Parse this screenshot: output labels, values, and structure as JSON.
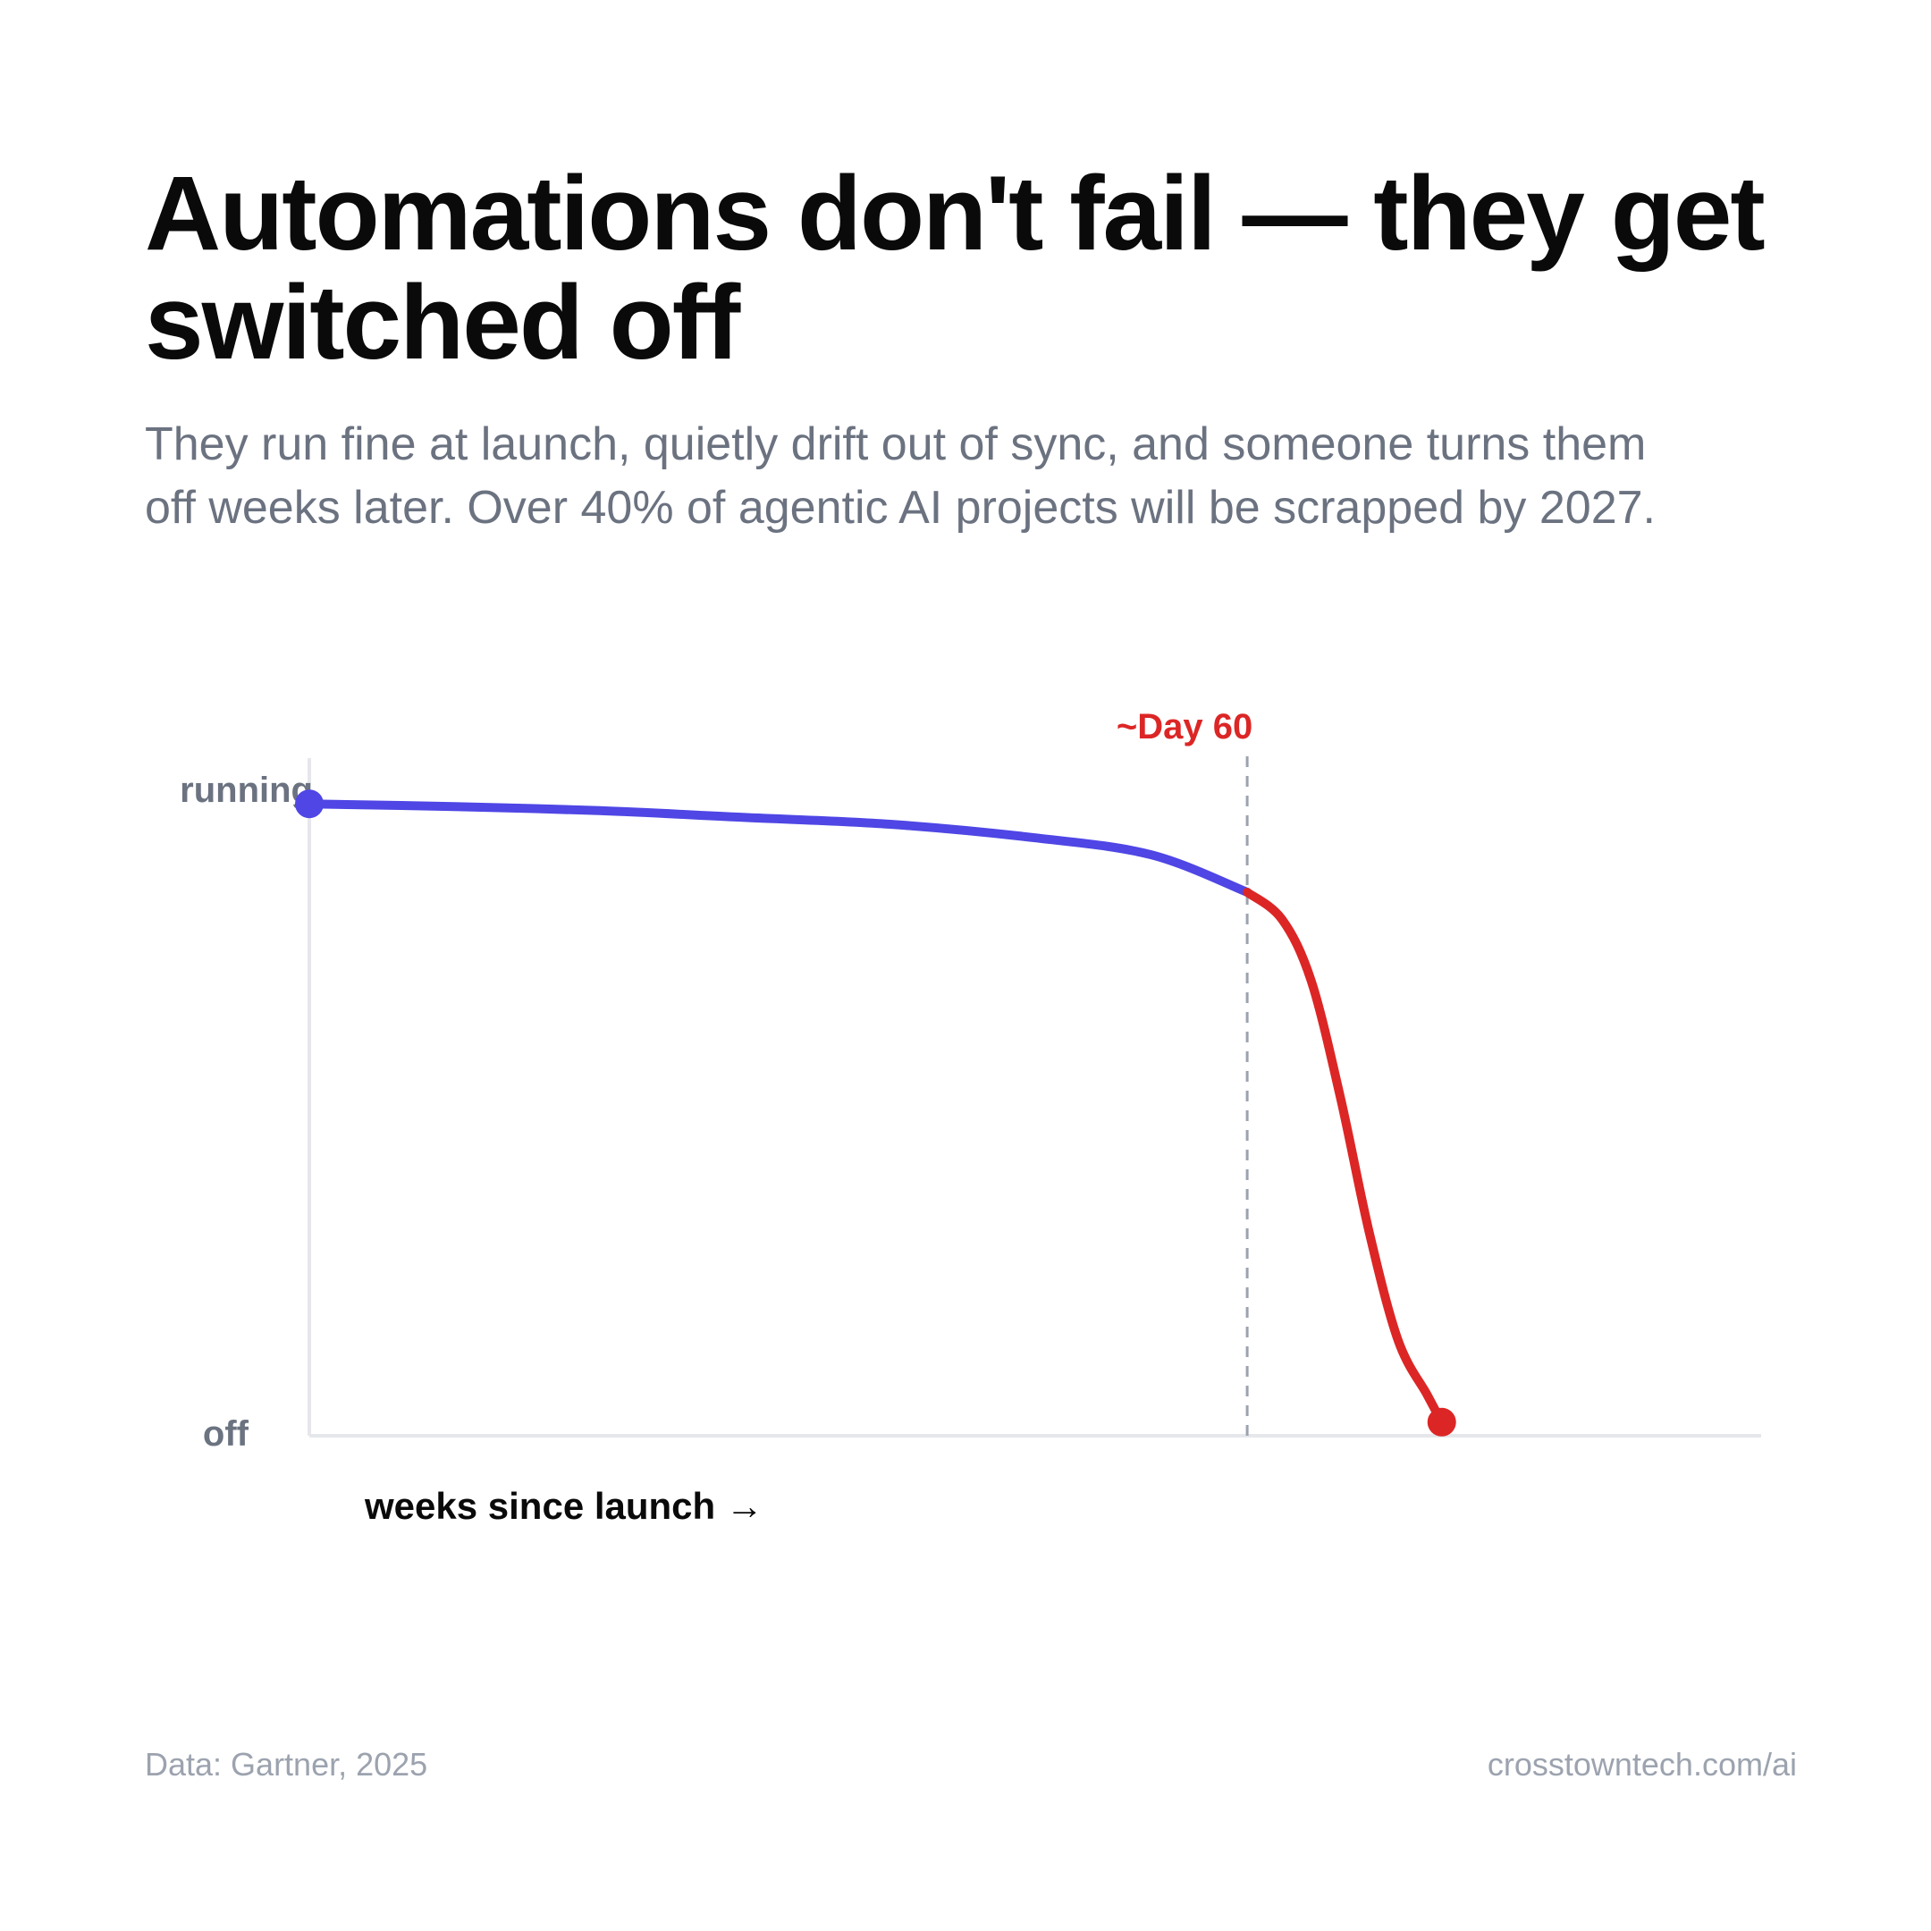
{
  "header": {
    "title": "Automations don't fail — they get switched off",
    "subtitle": "They run fine at launch, quietly drift out of sync, and someone turns them off weeks later. Over 40% of agentic AI projects will be scrapped by 2027."
  },
  "footer": {
    "source": "Data: Gartner, 2025",
    "site": "crosstowntech.com/ai"
  },
  "colors": {
    "running_series": "#4f46e5",
    "dropoff_series": "#dc2626",
    "axis": "#e5e7eb",
    "marker_line": "#9ca3af",
    "y_tick_text": "#6b7280"
  },
  "chart_data": {
    "type": "line",
    "title": "",
    "xlabel": "weeks since launch →",
    "ylabel": "",
    "y_ticks": [
      {
        "label": "running",
        "value": 1
      },
      {
        "label": "off",
        "value": 0
      }
    ],
    "ylim": [
      0,
      1
    ],
    "xlim": [
      0,
      1
    ],
    "grid": false,
    "legend": "none",
    "annotation": {
      "label": "~Day 60",
      "x": 0.646
    },
    "series": [
      {
        "color": "#4f46e5",
        "points": [
          [
            0,
            0.93
          ],
          [
            0.1,
            0.926
          ],
          [
            0.2,
            0.92
          ],
          [
            0.3,
            0.91
          ],
          [
            0.4,
            0.9
          ],
          [
            0.5,
            0.88
          ],
          [
            0.58,
            0.855
          ],
          [
            0.646,
            0.8
          ]
        ]
      },
      {
        "color": "#dc2626",
        "points": [
          [
            0.646,
            0.8
          ],
          [
            0.67,
            0.76
          ],
          [
            0.69,
            0.67
          ],
          [
            0.71,
            0.5
          ],
          [
            0.73,
            0.3
          ],
          [
            0.75,
            0.14
          ],
          [
            0.77,
            0.06
          ],
          [
            0.78,
            0.02
          ]
        ]
      }
    ]
  }
}
